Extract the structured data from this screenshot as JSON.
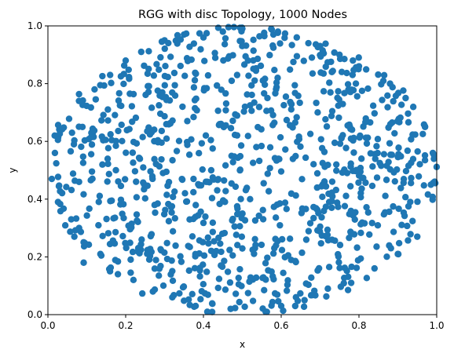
{
  "chart_data": {
    "type": "scatter",
    "title": "RGG with disc Topology, 1000 Nodes",
    "xlabel": "x",
    "ylabel": "y",
    "xlim": [
      0,
      1
    ],
    "ylim": [
      0,
      1
    ],
    "xticks": [
      "0.0",
      "0.2",
      "0.4",
      "0.6",
      "0.8",
      "1.0"
    ],
    "yticks": [
      "0.0",
      "0.2",
      "0.4",
      "0.6",
      "0.8",
      "1.0"
    ],
    "grid": false,
    "legend": "none",
    "series": [
      {
        "color": "#1f77b4",
        "points_count": 1000,
        "distribution": "uniform within disc",
        "center": [
          0.5,
          0.5
        ],
        "radius": 0.5,
        "x": [
          0.01,
          0.018,
          0.026,
          0.06,
          0.062,
          0.068,
          0.08,
          0.092,
          0.12,
          0.135,
          0.16,
          0.18,
          0.2,
          0.22,
          0.24,
          0.27,
          0.3,
          0.32,
          0.35,
          0.38,
          0.4,
          0.41,
          0.42,
          0.45,
          0.47,
          0.5,
          0.52,
          0.56,
          0.58,
          0.6,
          0.64,
          0.66,
          0.7,
          0.72,
          0.75,
          0.78,
          0.8,
          0.84,
          0.88,
          0.9,
          0.92,
          0.95,
          0.97,
          0.985,
          0.99
        ],
        "y": [
          0.47,
          0.56,
          0.39,
          0.33,
          0.63,
          0.27,
          0.74,
          0.18,
          0.78,
          0.21,
          0.83,
          0.14,
          0.88,
          0.12,
          0.91,
          0.08,
          0.95,
          0.06,
          0.97,
          0.03,
          0.96,
          0.01,
          0.5,
          0.98,
          0.02,
          0.99,
          0.4,
          0.01,
          0.97,
          0.03,
          0.96,
          0.05,
          0.93,
          0.09,
          0.9,
          0.11,
          0.86,
          0.16,
          0.8,
          0.21,
          0.75,
          0.27,
          0.65,
          0.45,
          0.56
        ]
      }
    ]
  }
}
